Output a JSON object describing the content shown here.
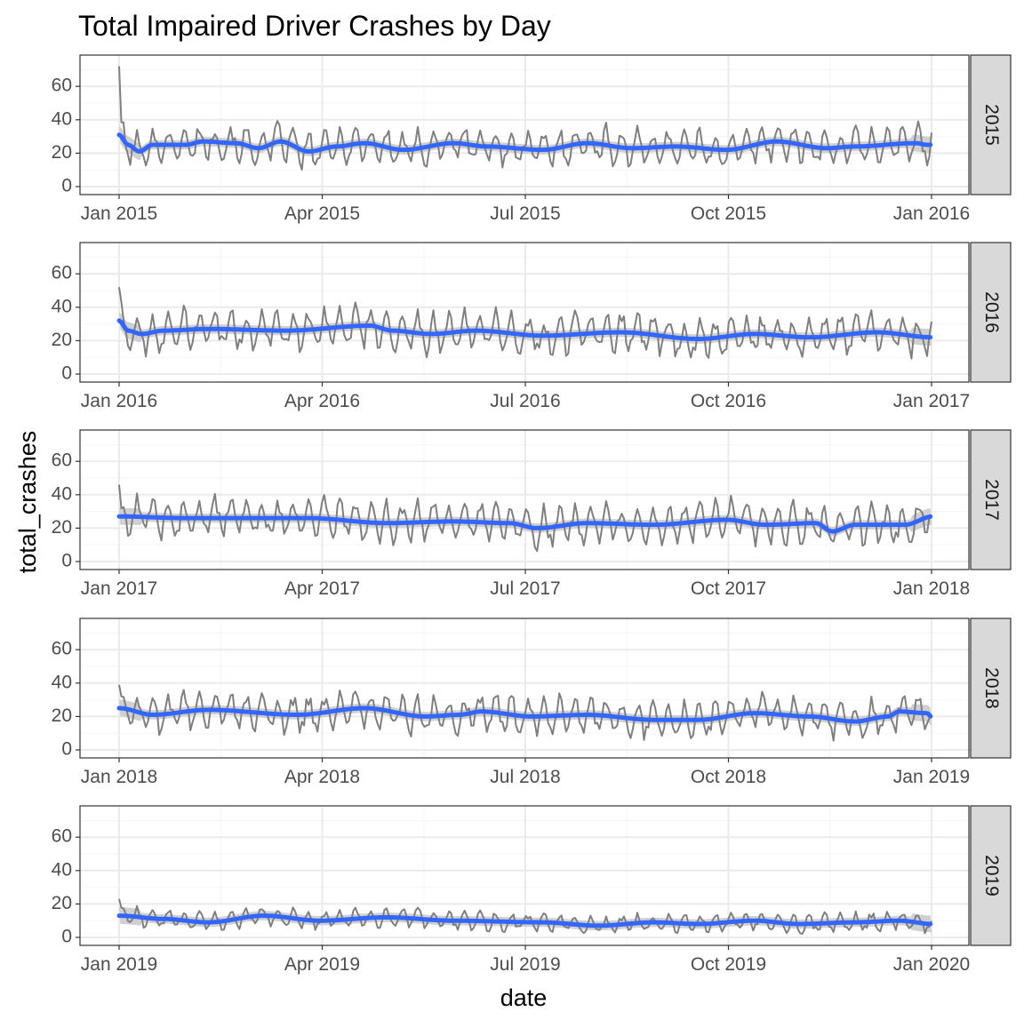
{
  "chart_data": {
    "type": "line",
    "title": "Total Impaired Driver Crashes by Day",
    "xlabel": "date",
    "ylabel": "total_crashes",
    "ylim": [
      0,
      75
    ],
    "y_ticks": [
      0,
      20,
      40,
      60
    ],
    "grid": true,
    "facet": "year (one panel per year, free x scales, labels on right strip)",
    "colors": {
      "raw_line": "#7f7f7f",
      "smooth_line": "#3366ff",
      "confidence_band": "#c8c8c8",
      "panel_border": "#333333",
      "grid_major": "#ebebeb",
      "grid_minor": "#f5f5f5",
      "strip_fill": "#d9d9d9"
    },
    "panels": [
      {
        "strip_label": "2015",
        "x_tick_labels": [
          "Jan 2015",
          "Apr 2015",
          "Jul 2015",
          "Oct 2015",
          "Jan 2016"
        ],
        "series_daily_mean": 25,
        "series_daily_amplitude": 10,
        "series_first_value": 72,
        "smooth_knots": [
          [
            0,
            31
          ],
          [
            8,
            25
          ],
          [
            18,
            21
          ],
          [
            30,
            25
          ],
          [
            60,
            25
          ],
          [
            75,
            27
          ],
          [
            105,
            26
          ],
          [
            125,
            23
          ],
          [
            145,
            27
          ],
          [
            170,
            21
          ],
          [
            195,
            24
          ],
          [
            220,
            26
          ],
          [
            255,
            22
          ],
          [
            300,
            26
          ],
          [
            330,
            24
          ],
          [
            380,
            22
          ],
          [
            420,
            26
          ],
          [
            460,
            23
          ],
          [
            500,
            24
          ],
          [
            545,
            22
          ],
          [
            590,
            27
          ],
          [
            635,
            23
          ],
          [
            660,
            24
          ],
          [
            715,
            26
          ],
          [
            725,
            25
          ],
          [
            730,
            25
          ]
        ]
      },
      {
        "strip_label": "2016",
        "x_tick_labels": [
          "Jan 2016",
          "Apr 2016",
          "Jul 2016",
          "Oct 2016",
          "Jan 2017"
        ],
        "series_daily_mean": 24,
        "series_daily_amplitude": 11,
        "series_first_value": 52,
        "smooth_knots": [
          [
            0,
            32
          ],
          [
            8,
            26
          ],
          [
            20,
            24
          ],
          [
            40,
            26
          ],
          [
            80,
            27
          ],
          [
            150,
            26
          ],
          [
            225,
            29
          ],
          [
            245,
            26
          ],
          [
            280,
            24
          ],
          [
            320,
            26
          ],
          [
            380,
            23
          ],
          [
            450,
            25
          ],
          [
            520,
            21
          ],
          [
            570,
            24
          ],
          [
            620,
            22
          ],
          [
            680,
            25
          ],
          [
            730,
            22
          ]
        ]
      },
      {
        "strip_label": "2017",
        "x_tick_labels": [
          "Jan 2017",
          "Apr 2017",
          "Jul 2017",
          "Oct 2017",
          "Jan 2018"
        ],
        "series_daily_mean": 23,
        "series_daily_amplitude": 11,
        "series_first_value": 46,
        "smooth_knots": [
          [
            0,
            27
          ],
          [
            60,
            26
          ],
          [
            170,
            26
          ],
          [
            240,
            23
          ],
          [
            300,
            24
          ],
          [
            350,
            23
          ],
          [
            375,
            20
          ],
          [
            420,
            23
          ],
          [
            480,
            22
          ],
          [
            545,
            25
          ],
          [
            580,
            22
          ],
          [
            625,
            23
          ],
          [
            640,
            18
          ],
          [
            660,
            22
          ],
          [
            705,
            22
          ],
          [
            730,
            27
          ]
        ]
      },
      {
        "strip_label": "2018",
        "x_tick_labels": [
          "Jan 2018",
          "Apr 2018",
          "Jul 2018",
          "Oct 2018",
          "Jan 2019"
        ],
        "series_daily_mean": 21,
        "series_daily_amplitude": 10,
        "series_first_value": 39,
        "smooth_knots": [
          [
            0,
            25
          ],
          [
            30,
            21
          ],
          [
            80,
            24
          ],
          [
            160,
            21
          ],
          [
            220,
            25
          ],
          [
            275,
            20
          ],
          [
            305,
            21
          ],
          [
            325,
            23
          ],
          [
            370,
            20
          ],
          [
            420,
            21
          ],
          [
            480,
            18
          ],
          [
            520,
            18
          ],
          [
            570,
            22
          ],
          [
            620,
            20
          ],
          [
            660,
            17
          ],
          [
            690,
            20
          ],
          [
            700,
            23
          ],
          [
            725,
            22
          ],
          [
            730,
            19
          ]
        ]
      },
      {
        "strip_label": "2019",
        "x_tick_labels": [
          "Jan 2019",
          "Apr 2019",
          "Jul 2019",
          "Oct 2019",
          "Jan 2020"
        ],
        "series_daily_mean": 10,
        "series_daily_amplitude": 5,
        "series_first_value": 23,
        "smooth_knots": [
          [
            0,
            13
          ],
          [
            40,
            11
          ],
          [
            80,
            9
          ],
          [
            130,
            13
          ],
          [
            180,
            10
          ],
          [
            240,
            12
          ],
          [
            300,
            10
          ],
          [
            380,
            9
          ],
          [
            430,
            7
          ],
          [
            480,
            9
          ],
          [
            520,
            8
          ],
          [
            570,
            10
          ],
          [
            610,
            8
          ],
          [
            660,
            9
          ],
          [
            700,
            10
          ],
          [
            730,
            8
          ]
        ]
      }
    ]
  }
}
